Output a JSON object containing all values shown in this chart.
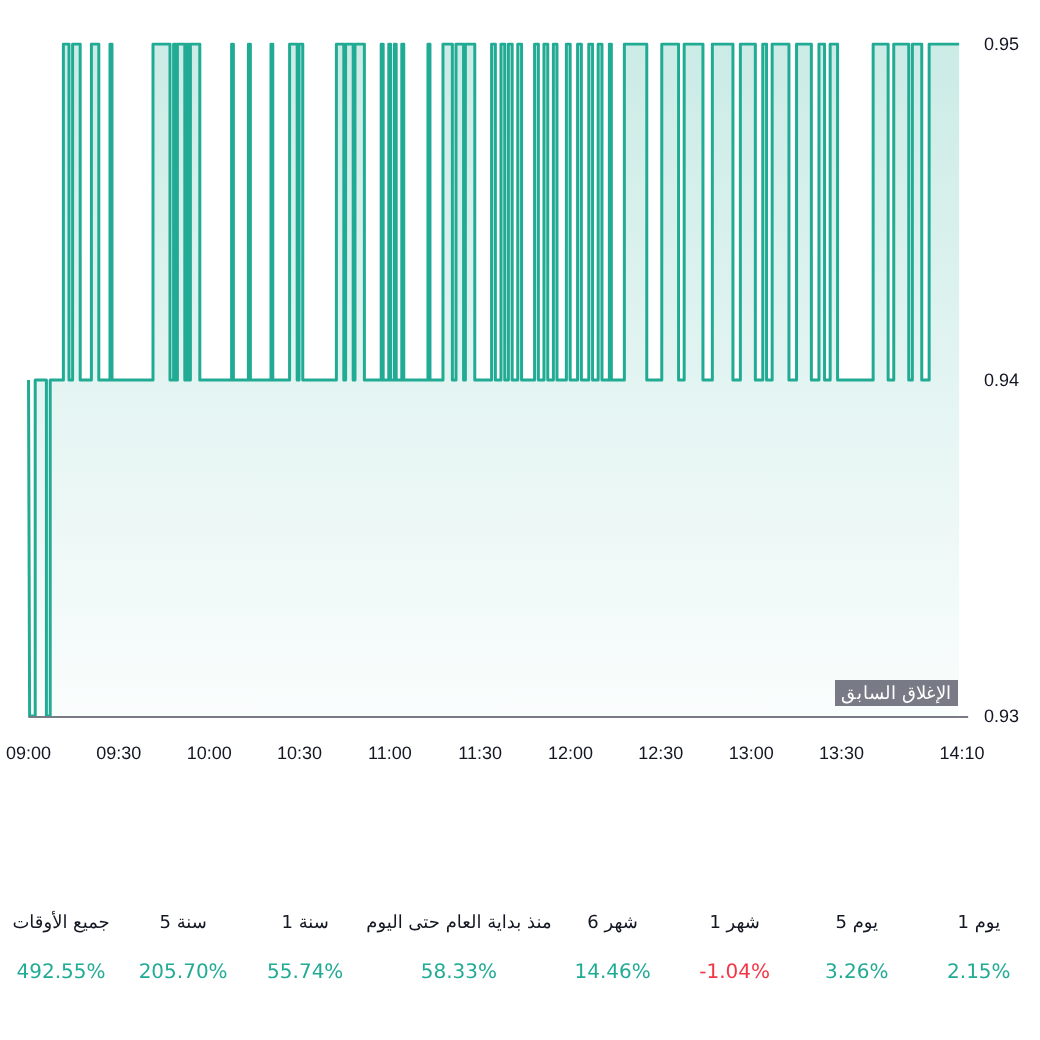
{
  "chart_data": [
    {
      "type": "step",
      "color": "#22ab94",
      "line_style": "solid",
      "marker": "none",
      "grid": false,
      "x": [
        9.0,
        9.006,
        9.037,
        9.099,
        9.12,
        9.193,
        9.224,
        9.244,
        9.286,
        9.348,
        9.389,
        9.451,
        9.462,
        9.689,
        9.783,
        9.803,
        9.814,
        9.824,
        9.865,
        9.876,
        9.886,
        9.896,
        9.948,
        10.124,
        10.134,
        10.217,
        10.228,
        10.342,
        10.352,
        10.445,
        10.487,
        10.497,
        10.518,
        10.704,
        10.745,
        10.755,
        10.797,
        10.807,
        10.859,
        10.952,
        10.963,
        10.994,
        11.004,
        11.025,
        11.035,
        11.066,
        11.077,
        11.211,
        11.222,
        11.294,
        11.346,
        11.366,
        11.408,
        11.418,
        11.47,
        11.563,
        11.584,
        11.615,
        11.636,
        11.656,
        11.677,
        11.708,
        11.729,
        11.801,
        11.822,
        11.853,
        11.874,
        11.905,
        11.925,
        11.977,
        11.998,
        12.039,
        12.06,
        12.101,
        12.122,
        12.153,
        12.174,
        12.215,
        12.226,
        12.298,
        12.422,
        12.505,
        12.598,
        12.629,
        12.733,
        12.785,
        12.899,
        12.94,
        13.023,
        13.064,
        13.085,
        13.116,
        13.209,
        13.251,
        13.333,
        13.375,
        13.406,
        13.437,
        13.478,
        13.675,
        13.758,
        13.789,
        13.872,
        13.892,
        13.944,
        13.985,
        14.151
      ],
      "values": [
        0.94,
        0.93,
        0.94,
        0.93,
        0.94,
        0.95,
        0.94,
        0.95,
        0.94,
        0.95,
        0.94,
        0.95,
        0.94,
        0.95,
        0.94,
        0.95,
        0.94,
        0.95,
        0.94,
        0.95,
        0.94,
        0.95,
        0.94,
        0.95,
        0.94,
        0.95,
        0.94,
        0.95,
        0.94,
        0.95,
        0.94,
        0.95,
        0.94,
        0.95,
        0.94,
        0.95,
        0.94,
        0.95,
        0.94,
        0.95,
        0.94,
        0.95,
        0.94,
        0.95,
        0.94,
        0.95,
        0.94,
        0.95,
        0.94,
        0.95,
        0.94,
        0.95,
        0.94,
        0.95,
        0.94,
        0.95,
        0.94,
        0.95,
        0.94,
        0.95,
        0.94,
        0.95,
        0.94,
        0.95,
        0.94,
        0.95,
        0.94,
        0.95,
        0.94,
        0.95,
        0.94,
        0.95,
        0.94,
        0.95,
        0.94,
        0.95,
        0.94,
        0.95,
        0.94,
        0.95,
        0.94,
        0.95,
        0.94,
        0.95,
        0.94,
        0.95,
        0.94,
        0.95,
        0.94,
        0.95,
        0.94,
        0.95,
        0.94,
        0.95,
        0.94,
        0.95,
        0.94,
        0.95,
        0.94,
        0.95,
        0.94,
        0.95,
        0.94,
        0.95,
        0.94,
        0.95,
        0.95
      ],
      "xlim": [
        9.0,
        14.2
      ],
      "xticks": [
        {
          "value": 9.0,
          "label": "09:00"
        },
        {
          "value": 9.5,
          "label": "09:30"
        },
        {
          "value": 10.0,
          "label": "10:00"
        },
        {
          "value": 10.5,
          "label": "10:30"
        },
        {
          "value": 11.0,
          "label": "11:00"
        },
        {
          "value": 11.5,
          "label": "11:30"
        },
        {
          "value": 12.0,
          "label": "12:00"
        },
        {
          "value": 12.5,
          "label": "12:30"
        },
        {
          "value": 13.0,
          "label": "13:00"
        },
        {
          "value": 13.5,
          "label": "13:30"
        },
        {
          "value": 14.1667,
          "label": "14:10"
        }
      ],
      "ylim": [
        0.93,
        0.95
      ],
      "yticks": [
        0.93,
        0.94,
        0.95
      ],
      "ref_lines": [
        {
          "axis": "y",
          "value": 0.93,
          "label": "الإغلاق السابق",
          "color": "#787b86"
        }
      ]
    },
    {
      "type": "other",
      "categories": [
        "جميع الأوقات",
        "5 سنة",
        "1 سنة",
        "منذ بداية العام حتى اليوم",
        "6 شهر",
        "1 شهر",
        "5 يوم",
        "1 يوم"
      ],
      "values": [
        492.55,
        205.7,
        55.74,
        58.33,
        14.46,
        -1.04,
        3.26,
        2.15
      ],
      "value_labels": [
        "492.55%",
        "205.70%",
        "55.74%",
        "58.33%",
        "14.46%",
        "-1.04%",
        "3.26%",
        "2.15%"
      ],
      "colors": [
        "#22ab94",
        "#22ab94",
        "#22ab94",
        "#22ab94",
        "#22ab94",
        "#f23645",
        "#22ab94",
        "#22ab94"
      ]
    }
  ]
}
